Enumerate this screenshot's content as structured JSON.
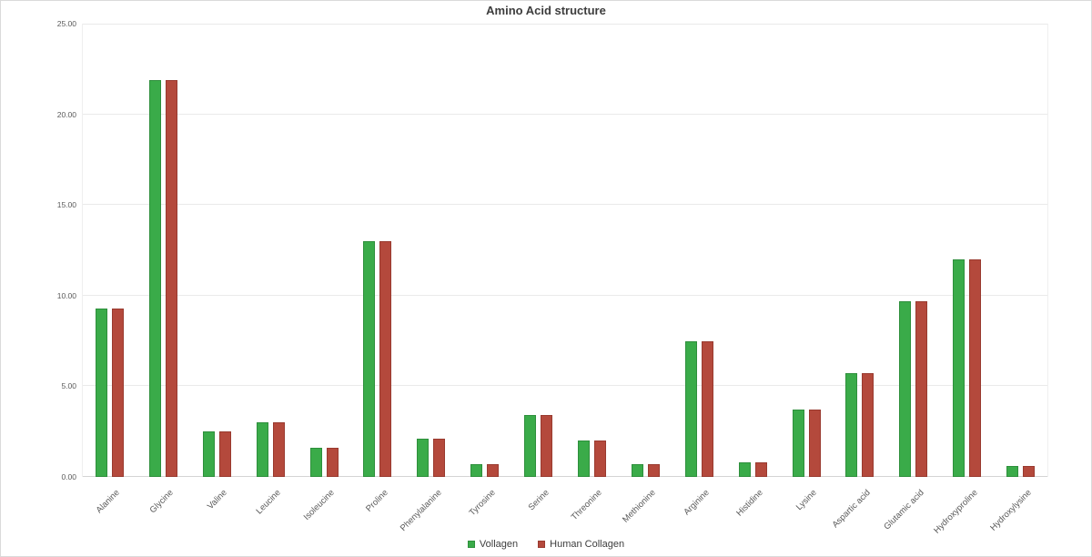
{
  "title": "Amino Acid structure",
  "palette": {
    "background": "#ffffff",
    "gridline": "#eaeaea",
    "axis_line": "#d4d4d4",
    "tick_text": "#595959",
    "title_text": "#3d3d3d"
  },
  "chart_data": {
    "type": "bar",
    "title": "Amino Acid structure",
    "xlabel": "",
    "ylabel": "",
    "ylim": [
      0,
      25
    ],
    "yticks": [
      "0.00",
      "5.00",
      "10.00",
      "15.00",
      "20.00",
      "25.00"
    ],
    "grid": "horizontal",
    "legend_position": "bottom",
    "categories": [
      "Alanine",
      "Glycine",
      "Valine",
      "Leucine",
      "Isoleucine",
      "Proline",
      "Phenylalanine",
      "Tyrosine",
      "Serine",
      "Threonine",
      "Methionine",
      "Arginine",
      "Histidine",
      "Lysine",
      "Aspartic acid",
      "Glutamic acid",
      "Hydroxyproline",
      "Hydroxylysine"
    ],
    "series": [
      {
        "name": "Vollagen",
        "color": "#3aab49",
        "border_color": "#2e8f3c",
        "values": [
          9.3,
          21.9,
          2.5,
          3.0,
          1.6,
          13.0,
          2.1,
          0.7,
          3.4,
          2.0,
          0.7,
          7.5,
          0.8,
          3.7,
          5.7,
          9.7,
          12.0,
          0.6
        ]
      },
      {
        "name": "Human Collagen",
        "color": "#b4493c",
        "border_color": "#993a2f",
        "values": [
          9.3,
          21.9,
          2.5,
          3.0,
          1.6,
          13.0,
          2.1,
          0.7,
          3.4,
          2.0,
          0.7,
          7.5,
          0.8,
          3.7,
          5.7,
          9.7,
          12.0,
          0.6
        ]
      }
    ]
  }
}
